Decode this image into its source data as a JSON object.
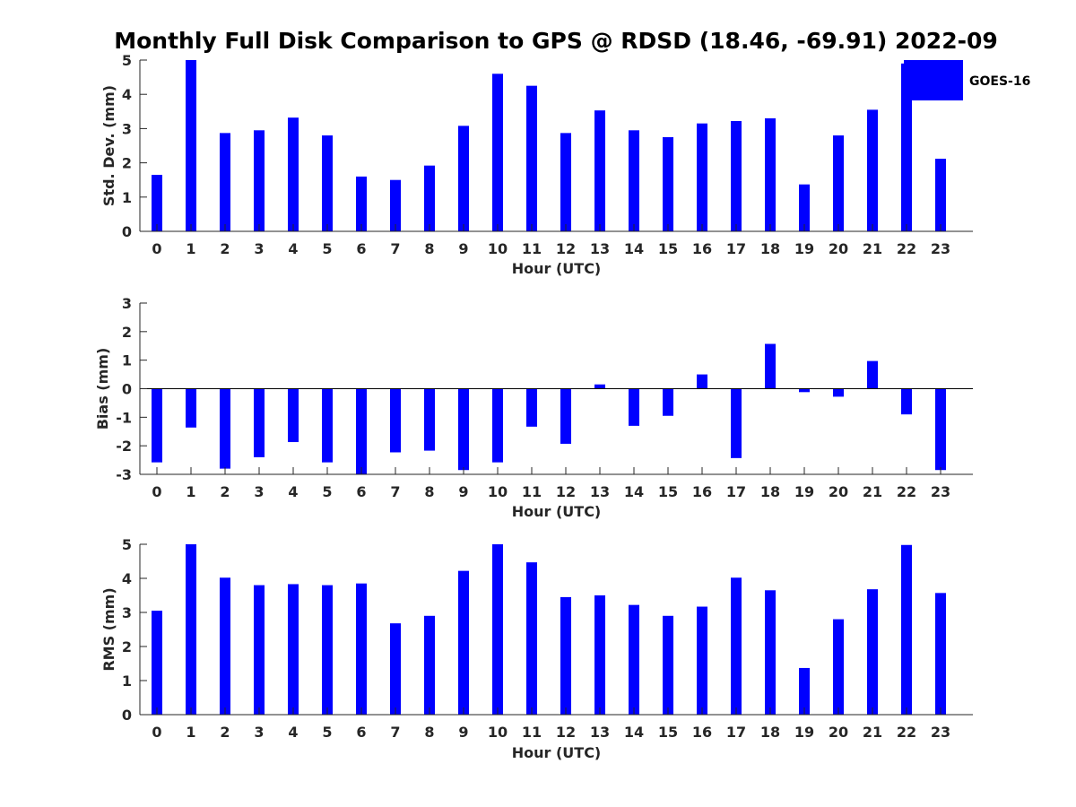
{
  "title": "Monthly Full Disk Comparison to GPS @ RDSD (18.46, -69.91) 2022-09",
  "colors": {
    "bar": "#0000ff",
    "axis": "#262626",
    "background": "#ffffff"
  },
  "legend": {
    "label": "GOES-16",
    "placement": "top-right"
  },
  "chart_data": [
    {
      "type": "bar",
      "categories": [
        "0",
        "1",
        "2",
        "3",
        "4",
        "5",
        "6",
        "7",
        "8",
        "9",
        "10",
        "11",
        "12",
        "13",
        "14",
        "15",
        "16",
        "17",
        "18",
        "19",
        "20",
        "21",
        "22",
        "23"
      ],
      "series": [
        {
          "name": "GOES-16",
          "values": [
            1.65,
            5.0,
            2.87,
            2.95,
            3.32,
            2.8,
            1.6,
            1.5,
            1.92,
            3.08,
            4.6,
            4.25,
            2.87,
            3.53,
            2.95,
            2.75,
            3.15,
            3.22,
            3.3,
            1.37,
            2.8,
            3.55,
            4.9,
            2.12
          ]
        }
      ],
      "xlabel": "Hour (UTC)",
      "ylabel": "Std. Dev. (mm)",
      "ylim": [
        0,
        5
      ],
      "yticks": [
        0,
        1,
        2,
        3,
        4,
        5
      ],
      "grid": false
    },
    {
      "type": "bar",
      "categories": [
        "0",
        "1",
        "2",
        "3",
        "4",
        "5",
        "6",
        "7",
        "8",
        "9",
        "10",
        "11",
        "12",
        "13",
        "14",
        "15",
        "16",
        "17",
        "18",
        "19",
        "20",
        "21",
        "22",
        "23"
      ],
      "series": [
        {
          "name": "GOES-16",
          "values": [
            -2.58,
            -1.36,
            -2.8,
            -2.4,
            -1.87,
            -2.58,
            -3.0,
            -2.23,
            -2.17,
            -2.85,
            -2.58,
            -1.33,
            -1.93,
            0.15,
            -1.3,
            -0.95,
            0.5,
            -2.43,
            1.57,
            -0.12,
            -0.28,
            0.97,
            -0.9,
            -2.85
          ]
        }
      ],
      "xlabel": "Hour (UTC)",
      "ylabel": "Bias (mm)",
      "ylim": [
        -3,
        3
      ],
      "yticks": [
        -3,
        -2,
        -1,
        0,
        1,
        2,
        3
      ],
      "grid": false
    },
    {
      "type": "bar",
      "categories": [
        "0",
        "1",
        "2",
        "3",
        "4",
        "5",
        "6",
        "7",
        "8",
        "9",
        "10",
        "11",
        "12",
        "13",
        "14",
        "15",
        "16",
        "17",
        "18",
        "19",
        "20",
        "21",
        "22",
        "23"
      ],
      "series": [
        {
          "name": "GOES-16",
          "values": [
            3.05,
            5.0,
            4.02,
            3.8,
            3.83,
            3.8,
            3.85,
            2.68,
            2.9,
            4.22,
            5.0,
            4.47,
            3.45,
            3.5,
            3.22,
            2.9,
            3.17,
            4.02,
            3.65,
            1.37,
            2.8,
            3.68,
            4.98,
            3.57
          ]
        }
      ],
      "xlabel": "Hour (UTC)",
      "ylabel": "RMS (mm)",
      "ylim": [
        0,
        5
      ],
      "yticks": [
        0,
        1,
        2,
        3,
        4,
        5
      ],
      "grid": false
    }
  ]
}
